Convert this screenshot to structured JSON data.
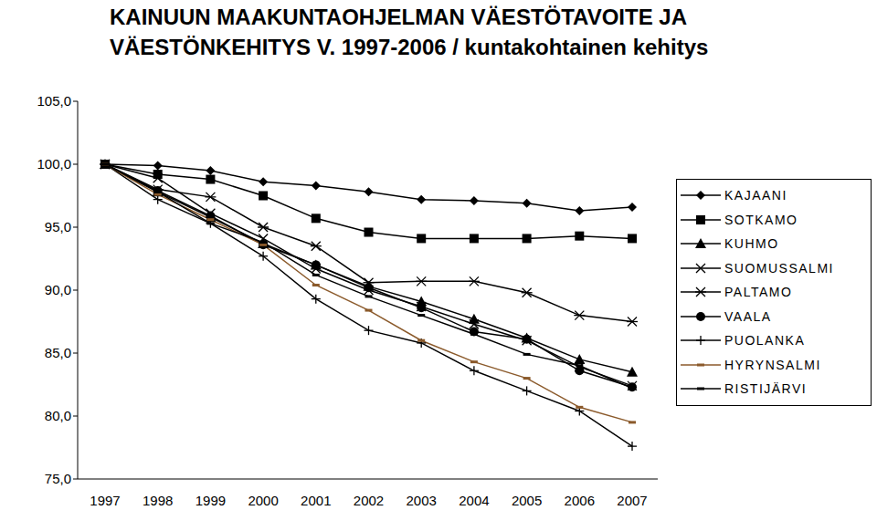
{
  "chart_data": {
    "type": "line",
    "title": "KAINUUN MAAKUNTAOHJELMAN VÄESTÖTAVOITE JA\nVÄESTÖNKEHITYS V. 1997-2006 / kuntakohtainen kehitys",
    "categories": [
      "1997",
      "1998",
      "1999",
      "2000",
      "2001",
      "2002",
      "2003",
      "2004",
      "2005",
      "2006",
      "2007"
    ],
    "series": [
      {
        "name": "KAJAANI",
        "color": "#000000",
        "marker": "diamond",
        "values": [
          100,
          99.9,
          99.5,
          98.6,
          98.3,
          97.8,
          97.2,
          97.1,
          96.9,
          96.3,
          96.6
        ]
      },
      {
        "name": "SOTKAMO",
        "color": "#000000",
        "marker": "square",
        "values": [
          100,
          99.2,
          98.8,
          97.5,
          95.7,
          94.6,
          94.1,
          94.1,
          94.1,
          94.3,
          94.1
        ]
      },
      {
        "name": "KUHMO",
        "color": "#000000",
        "marker": "triangle",
        "values": [
          100,
          97.8,
          95.8,
          93.7,
          92.0,
          90.3,
          89.1,
          87.7,
          86.2,
          84.5,
          83.5
        ]
      },
      {
        "name": "SUOMUSSALMI",
        "color": "#000000",
        "marker": "x",
        "values": [
          100,
          98.9,
          96.1,
          94.1,
          91.7,
          90.0,
          88.7,
          87.3,
          86.0,
          83.9,
          82.4
        ]
      },
      {
        "name": "PALTAMO",
        "color": "#000000",
        "marker": "star",
        "values": [
          100,
          98.0,
          97.4,
          95.0,
          93.5,
          90.6,
          90.7,
          90.7,
          89.8,
          88.0,
          87.5
        ]
      },
      {
        "name": "VAALA",
        "color": "#000000",
        "marker": "circle",
        "values": [
          100,
          97.9,
          95.9,
          93.6,
          92.0,
          90.2,
          88.6,
          86.7,
          86.1,
          83.6,
          82.3
        ]
      },
      {
        "name": "PUOLANKA",
        "color": "#000000",
        "marker": "plus",
        "values": [
          100,
          97.2,
          95.3,
          92.7,
          89.3,
          86.8,
          85.8,
          83.6,
          82.0,
          80.4,
          77.6
        ]
      },
      {
        "name": "HYRYNSALMI",
        "color": "#8b5a2b",
        "marker": "dash",
        "values": [
          100,
          97.6,
          95.6,
          93.6,
          90.4,
          88.4,
          86.0,
          84.3,
          83.0,
          80.7,
          79.5
        ]
      },
      {
        "name": "RISTIJÄRVI",
        "color": "#000000",
        "marker": "dash",
        "values": [
          100,
          97.8,
          95.3,
          93.8,
          91.2,
          89.5,
          88.0,
          86.5,
          84.9,
          84.0,
          82.2
        ]
      }
    ],
    "ylim": [
      75,
      105
    ],
    "yticks": [
      {
        "value": 75,
        "label": "75,0"
      },
      {
        "value": 80,
        "label": "80,0"
      },
      {
        "value": 85,
        "label": "85,0"
      },
      {
        "value": 90,
        "label": "90,0"
      },
      {
        "value": 95,
        "label": "95,0"
      },
      {
        "value": 100,
        "label": "100,0"
      },
      {
        "value": 105,
        "label": "105,0"
      }
    ],
    "grid": false,
    "legend": "right"
  }
}
